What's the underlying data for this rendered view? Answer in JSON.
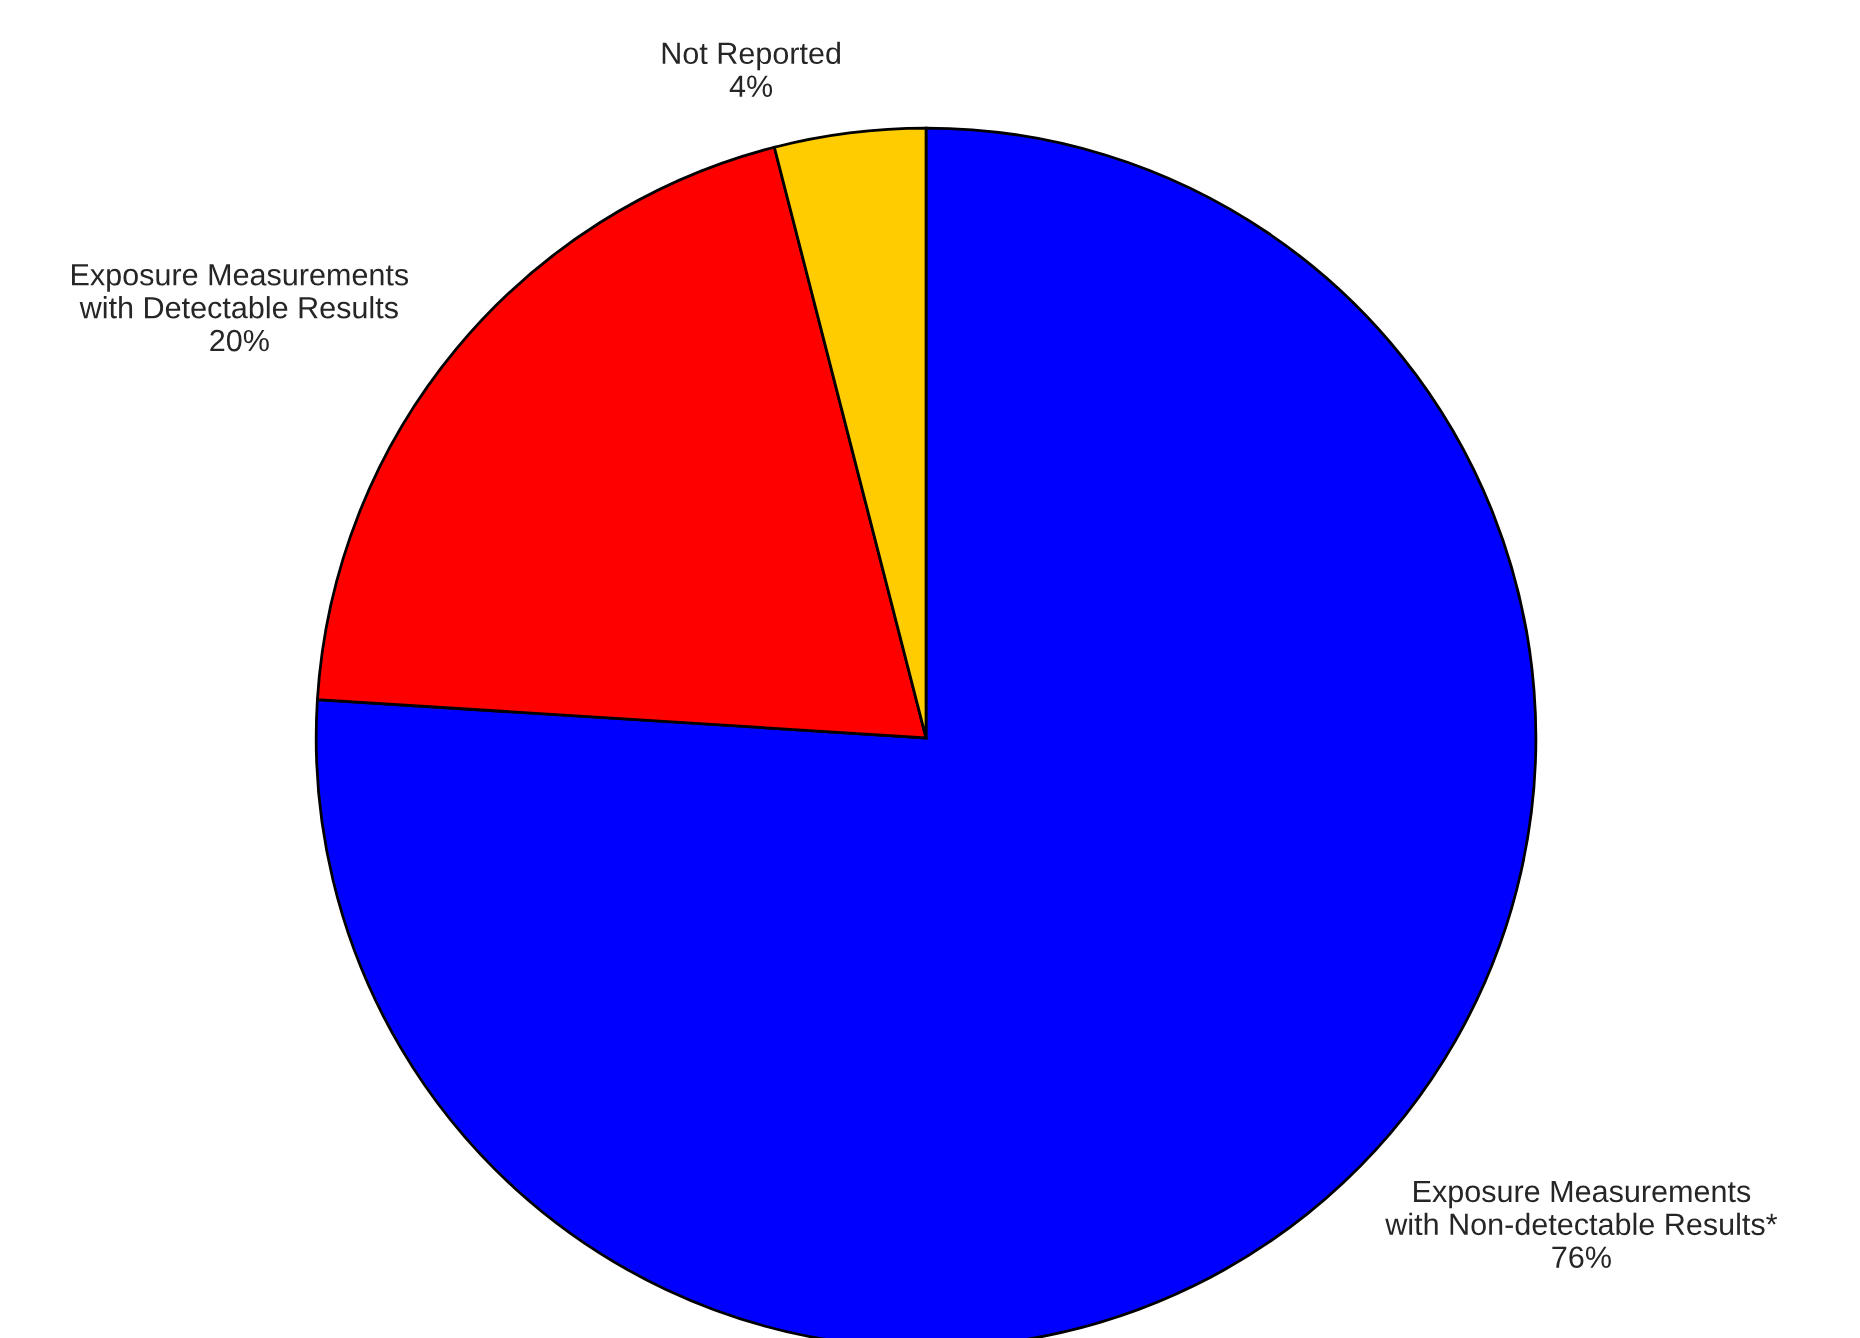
{
  "chart_data": {
    "type": "pie",
    "categories": [
      "Exposure Measurements\nwith Non-detectable Results*",
      "Exposure Measurements\nwith Detectable Results",
      "Not Reported"
    ],
    "values": [
      76,
      20,
      4
    ],
    "colors": [
      "#0000ff",
      "#ff0000",
      "#ffcc00"
    ],
    "value_labels": [
      "76%",
      "20%",
      "4%"
    ],
    "legend": false
  }
}
